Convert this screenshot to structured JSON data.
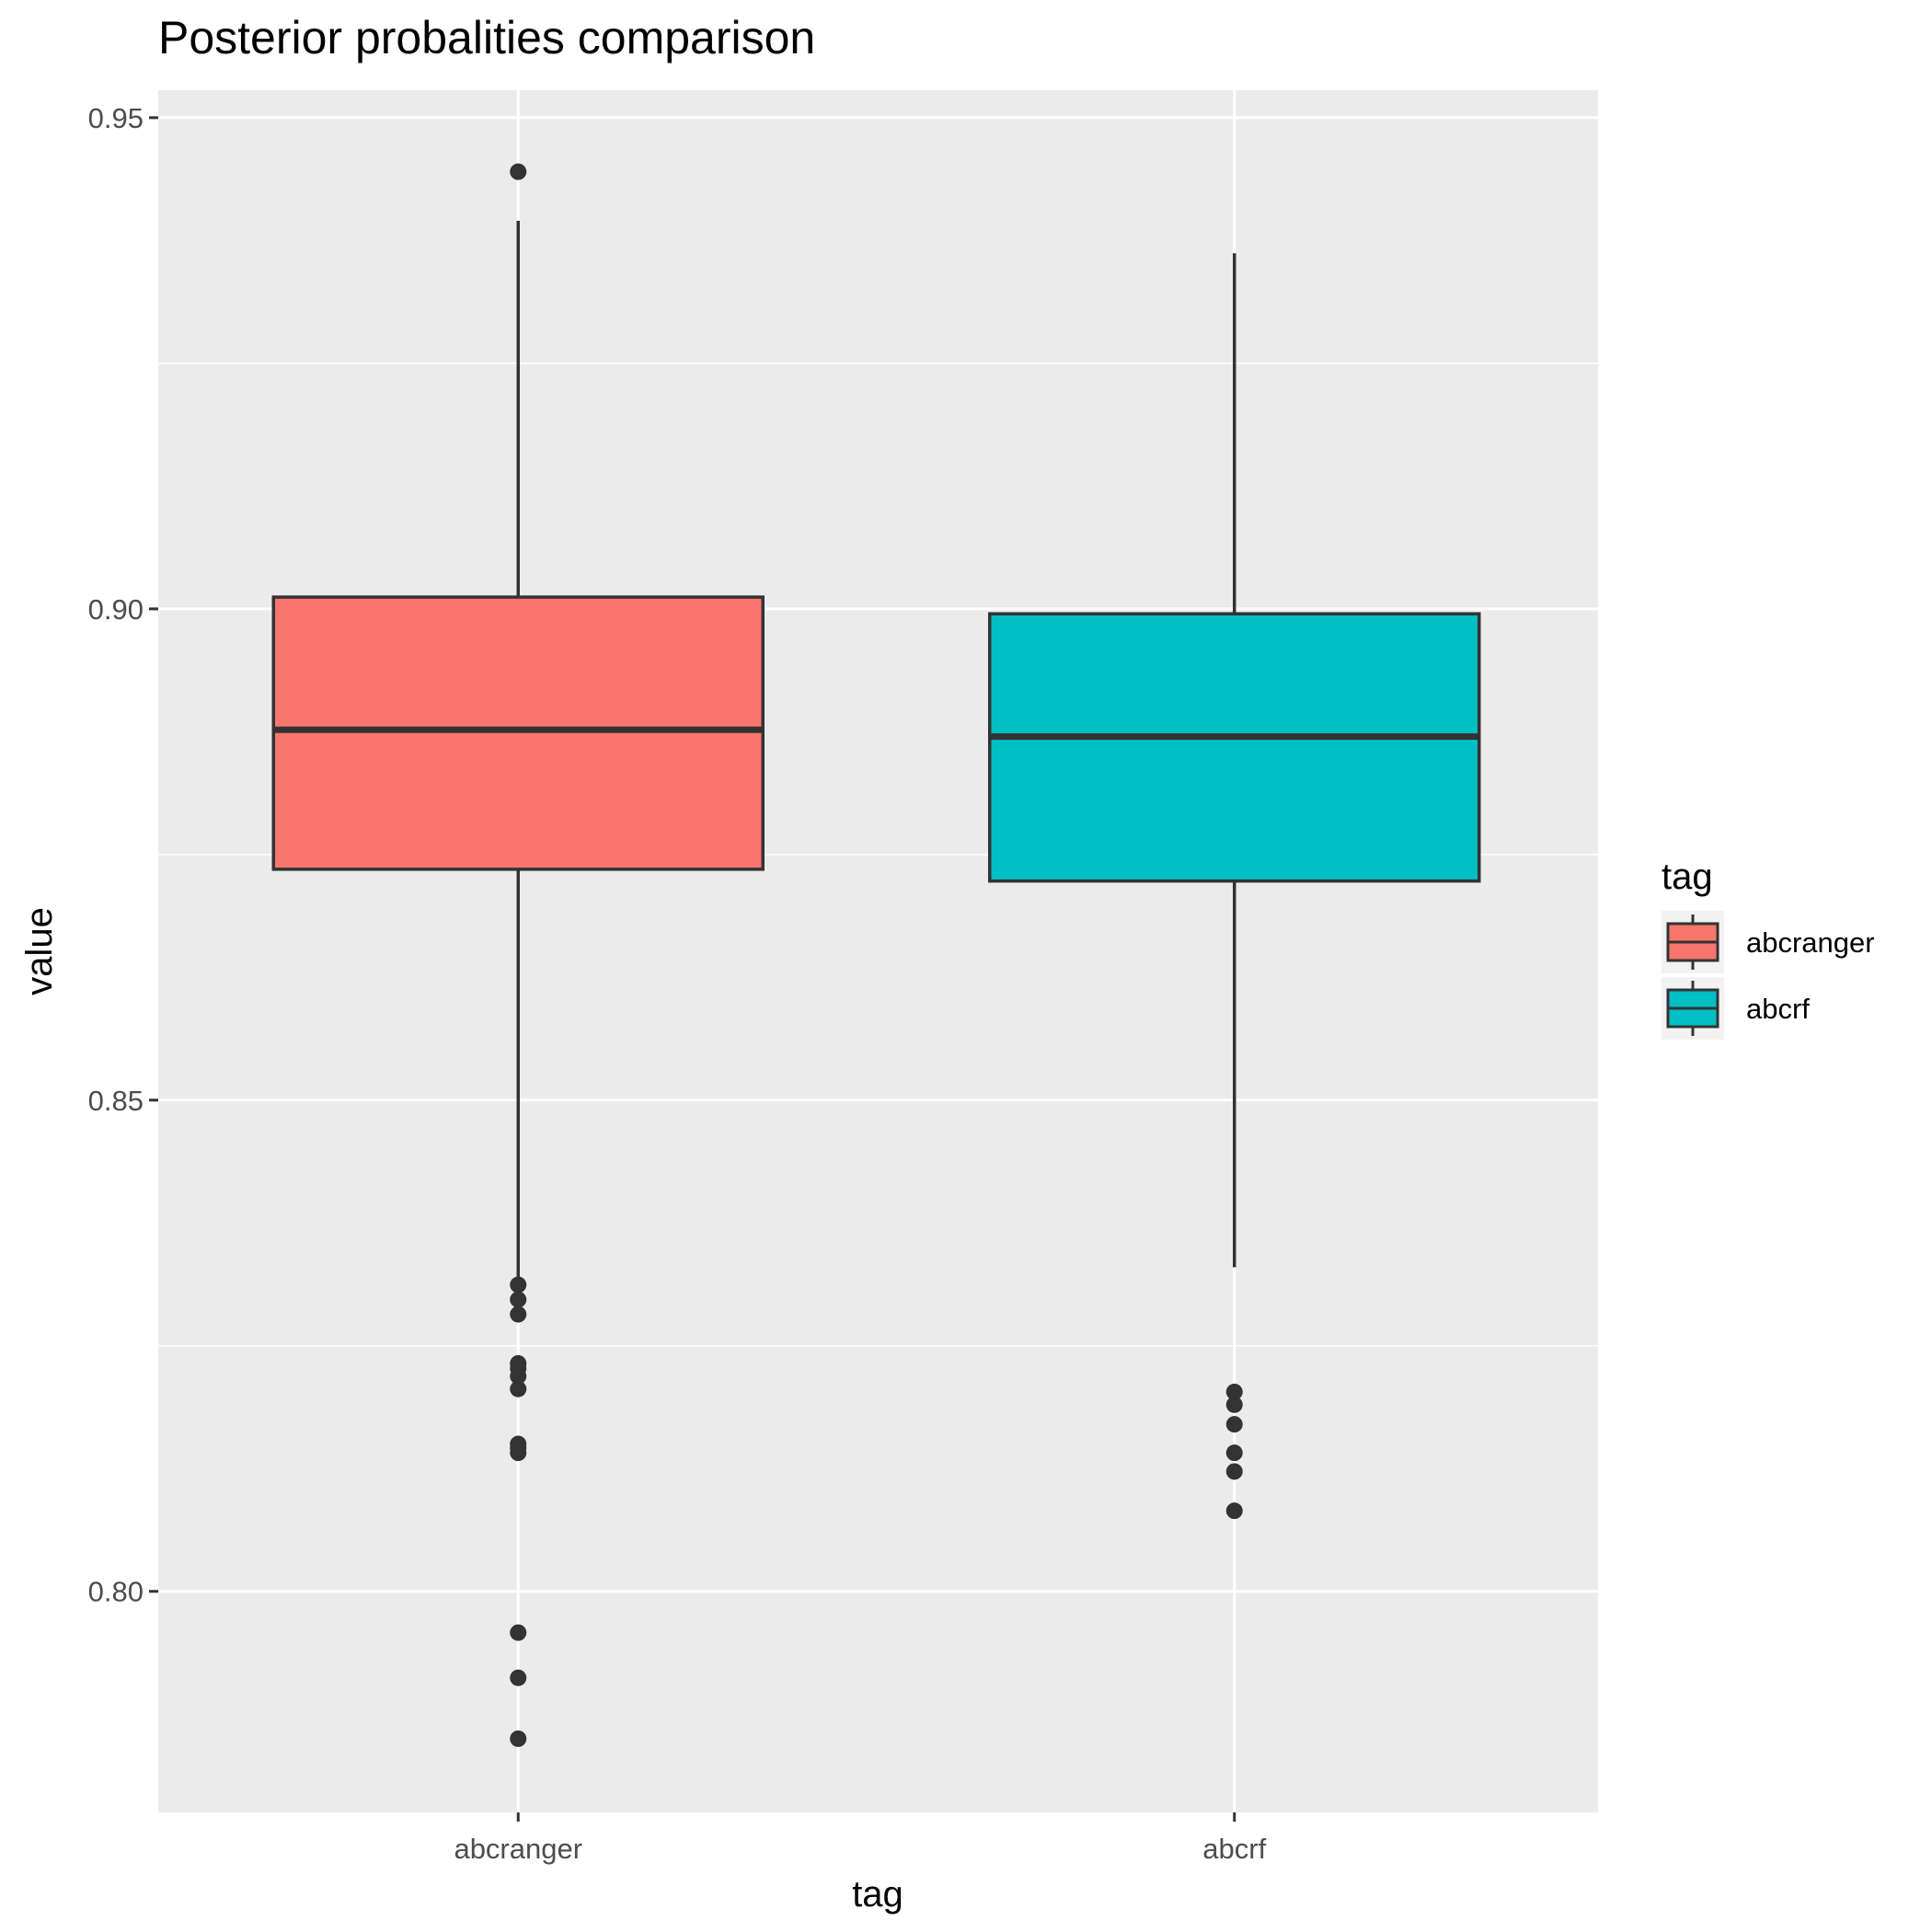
{
  "chart_data": {
    "type": "boxplot",
    "title": "Posterior probalities comparison",
    "xlabel": "tag",
    "ylabel": "value",
    "ylim": [
      0.7775,
      0.9528
    ],
    "y_ticks": [
      0.8,
      0.85,
      0.9,
      0.95
    ],
    "y_tick_labels": [
      "0.80",
      "0.85",
      "0.90",
      "0.95"
    ],
    "grid": true,
    "legend": {
      "title": "tag",
      "position": "right"
    },
    "categories": [
      "abcranger",
      "abcrf"
    ],
    "series": [
      {
        "name": "abcranger",
        "color": "#F8766D",
        "whisker_low": 0.8315,
        "q1": 0.8735,
        "median": 0.8877,
        "q3": 0.9012,
        "whisker_high": 0.9395,
        "outliers": [
          0.9445,
          0.8312,
          0.8297,
          0.8282,
          0.8232,
          0.8227,
          0.8219,
          0.8206,
          0.815,
          0.8146,
          0.8141,
          0.7958,
          0.7912,
          0.785
        ]
      },
      {
        "name": "abcrf",
        "color": "#00BFC4",
        "whisker_low": 0.833,
        "q1": 0.8723,
        "median": 0.887,
        "q3": 0.8995,
        "whisker_high": 0.9362,
        "outliers": [
          0.8203,
          0.819,
          0.817,
          0.8141,
          0.8122,
          0.8082
        ]
      }
    ]
  }
}
